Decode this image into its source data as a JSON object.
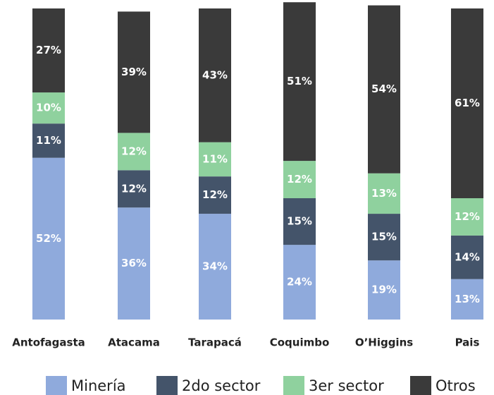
{
  "chart_data": {
    "type": "stacked_bar",
    "categories": [
      "Antofagasta",
      "Atacama",
      "Tarapacá",
      "Coquimbo",
      "O’Higgins",
      "Pais"
    ],
    "ylim": [
      0,
      100
    ],
    "series": [
      {
        "name": "Minería",
        "color": "#8faadc",
        "values": [
          52,
          36,
          34,
          24,
          19,
          13
        ],
        "value_labels": [
          "52%",
          "36%",
          "34%",
          "24%",
          "19%",
          "13%"
        ]
      },
      {
        "name": "2do sector",
        "color": "#44546a",
        "values": [
          11,
          12,
          12,
          15,
          15,
          14
        ],
        "value_labels": [
          "11%",
          "12%",
          "12%",
          "15%",
          "15%",
          "14%"
        ]
      },
      {
        "name": "3er sector",
        "color": "#8fd19e",
        "values": [
          10,
          12,
          11,
          12,
          13,
          12
        ],
        "value_labels": [
          "10%",
          "12%",
          "11%",
          "12%",
          "13%",
          "12%"
        ]
      },
      {
        "name": "Otros",
        "color": "#3a3a3a",
        "values": [
          27,
          39,
          43,
          51,
          54,
          61
        ],
        "value_labels": [
          "27%",
          "39%",
          "43%",
          "51%",
          "54%",
          "61%"
        ]
      }
    ]
  }
}
